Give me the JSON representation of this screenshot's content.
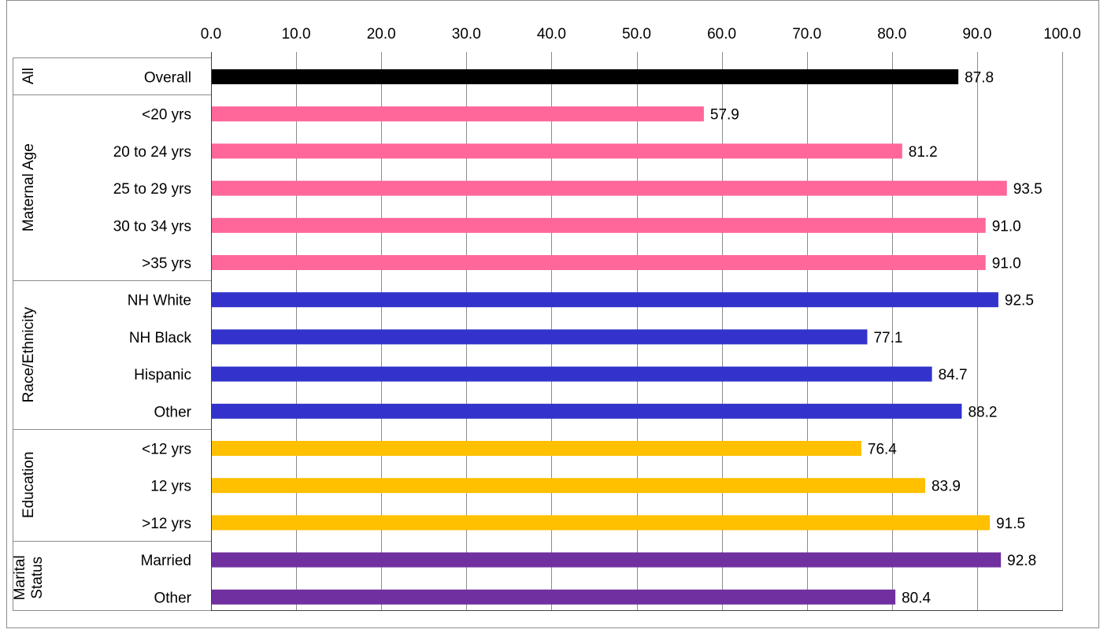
{
  "chart_data": {
    "type": "bar",
    "orientation": "horizontal",
    "xlim": [
      0,
      100
    ],
    "x_ticks": [
      "0.0",
      "10.0",
      "20.0",
      "30.0",
      "40.0",
      "50.0",
      "60.0",
      "70.0",
      "80.0",
      "90.0",
      "100.0"
    ],
    "grid": true,
    "groups": [
      {
        "label": "All",
        "color": "#000000",
        "bars": [
          {
            "label": "Overall",
            "value": 87.8,
            "value_label": "87.8"
          }
        ]
      },
      {
        "label": "Maternal Age",
        "color": "#ff6699",
        "bars": [
          {
            "label": "<20 yrs",
            "value": 57.9,
            "value_label": "57.9"
          },
          {
            "label": "20 to 24 yrs",
            "value": 81.2,
            "value_label": "81.2"
          },
          {
            "label": "25 to 29 yrs",
            "value": 93.5,
            "value_label": "93.5"
          },
          {
            "label": "30 to 34 yrs",
            "value": 91.0,
            "value_label": "91.0"
          },
          {
            "label": ">35 yrs",
            "value": 91.0,
            "value_label": "91.0"
          }
        ]
      },
      {
        "label": "Race/Ethnicity",
        "color": "#3333cc",
        "bars": [
          {
            "label": "NH White",
            "value": 92.5,
            "value_label": "92.5"
          },
          {
            "label": "NH Black",
            "value": 77.1,
            "value_label": "77.1"
          },
          {
            "label": "Hispanic",
            "value": 84.7,
            "value_label": "84.7"
          },
          {
            "label": "Other",
            "value": 88.2,
            "value_label": "88.2"
          }
        ]
      },
      {
        "label": "Education",
        "color": "#ffc000",
        "bars": [
          {
            "label": "<12 yrs",
            "value": 76.4,
            "value_label": "76.4"
          },
          {
            "label": "12 yrs",
            "value": 83.9,
            "value_label": "83.9"
          },
          {
            "label": ">12 yrs",
            "value": 91.5,
            "value_label": "91.5"
          }
        ]
      },
      {
        "label": "Marital Status",
        "label_lines": [
          "Marital",
          "Status"
        ],
        "color": "#7030a0",
        "bars": [
          {
            "label": "Married",
            "value": 92.8,
            "value_label": "92.8"
          },
          {
            "label": "Other",
            "value": 80.4,
            "value_label": "80.4"
          }
        ]
      }
    ]
  }
}
